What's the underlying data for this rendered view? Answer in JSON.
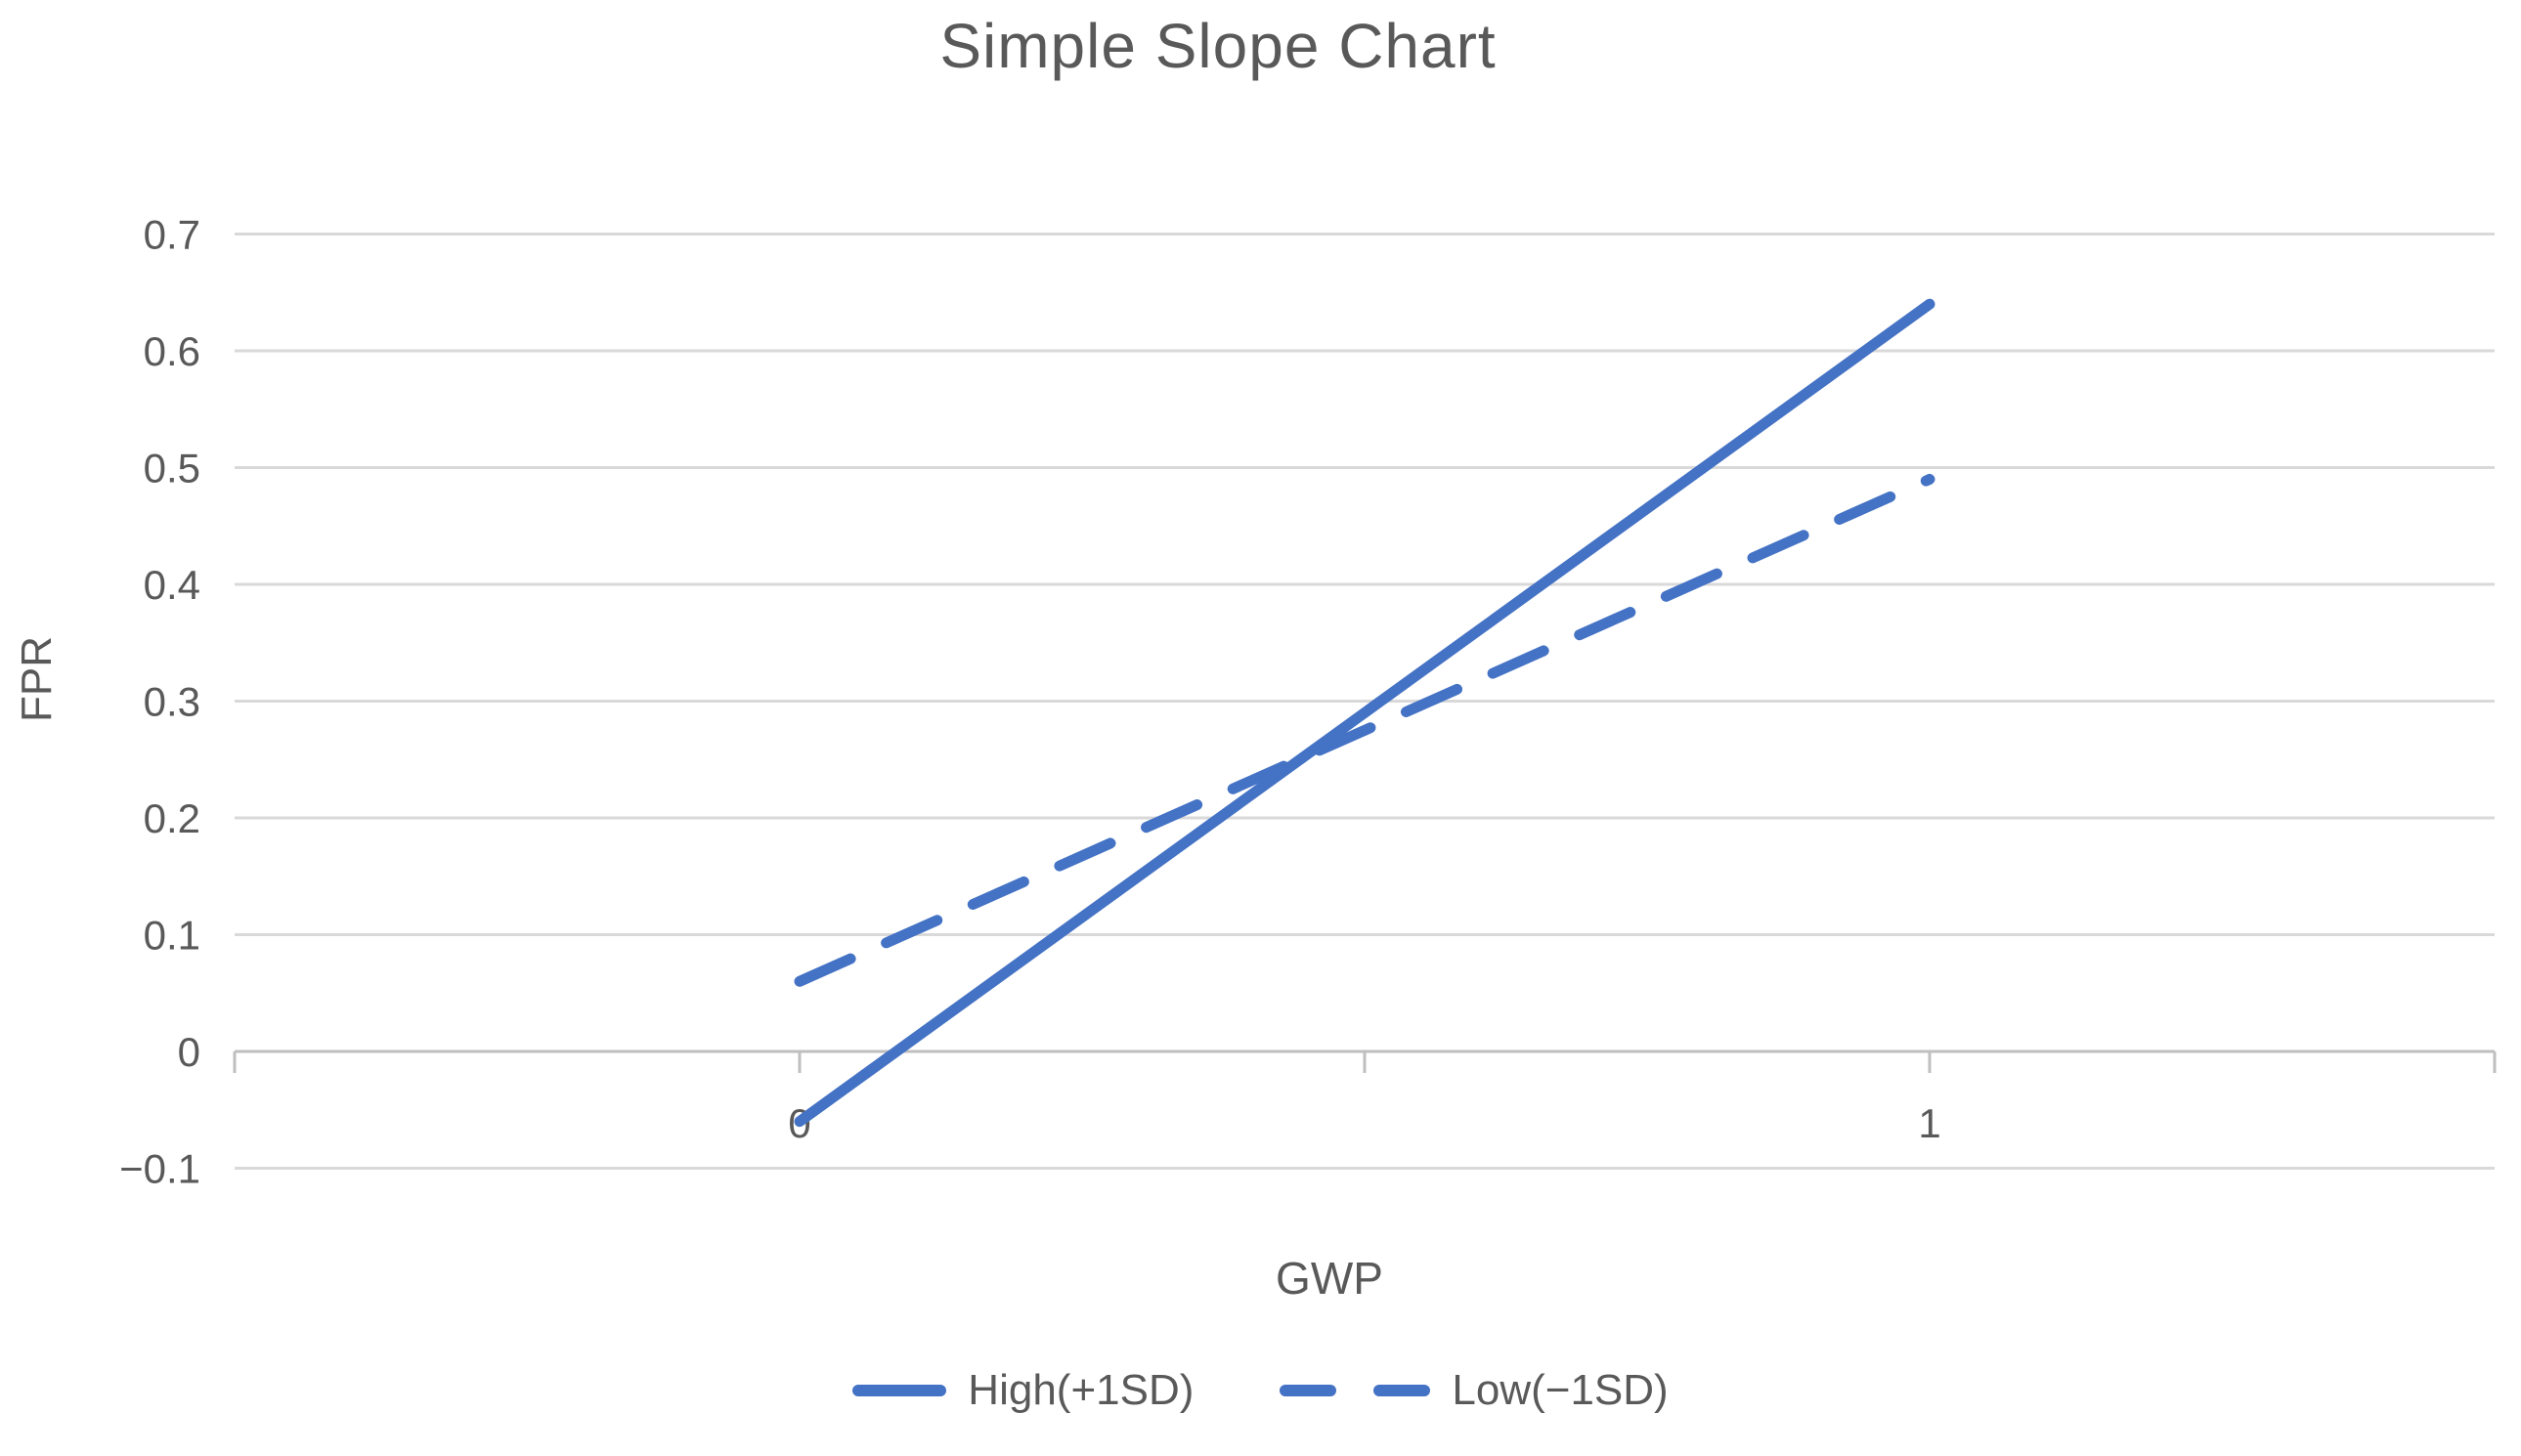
{
  "chart_data": {
    "type": "line",
    "title": "Simple Slope Chart",
    "xlabel": "GWP",
    "ylabel": "FPR",
    "x_categories": [
      "0",
      "1"
    ],
    "series": [
      {
        "name": "High(+1SD)",
        "style": "solid",
        "values": [
          -0.06,
          0.64
        ]
      },
      {
        "name": "Low(−1SD)",
        "style": "dashed",
        "values": [
          0.06,
          0.49
        ]
      }
    ],
    "ylim": [
      -0.1,
      0.7
    ],
    "y_ticks": [
      {
        "v": 0.7,
        "label": "0.7"
      },
      {
        "v": 0.6,
        "label": "0.6"
      },
      {
        "v": 0.5,
        "label": "0.5"
      },
      {
        "v": 0.4,
        "label": "0.4"
      },
      {
        "v": 0.3,
        "label": "0.3"
      },
      {
        "v": 0.2,
        "label": "0.2"
      },
      {
        "v": 0.1,
        "label": "0.1"
      },
      {
        "v": 0.0,
        "label": "0"
      },
      {
        "v": -0.1,
        "label": "−0.1"
      }
    ],
    "grid": true,
    "legend_position": "bottom",
    "colors": {
      "line": "#4472C4",
      "gridline": "#D9D9D9",
      "axis": "#BFBFBF",
      "text": "#595959"
    }
  }
}
